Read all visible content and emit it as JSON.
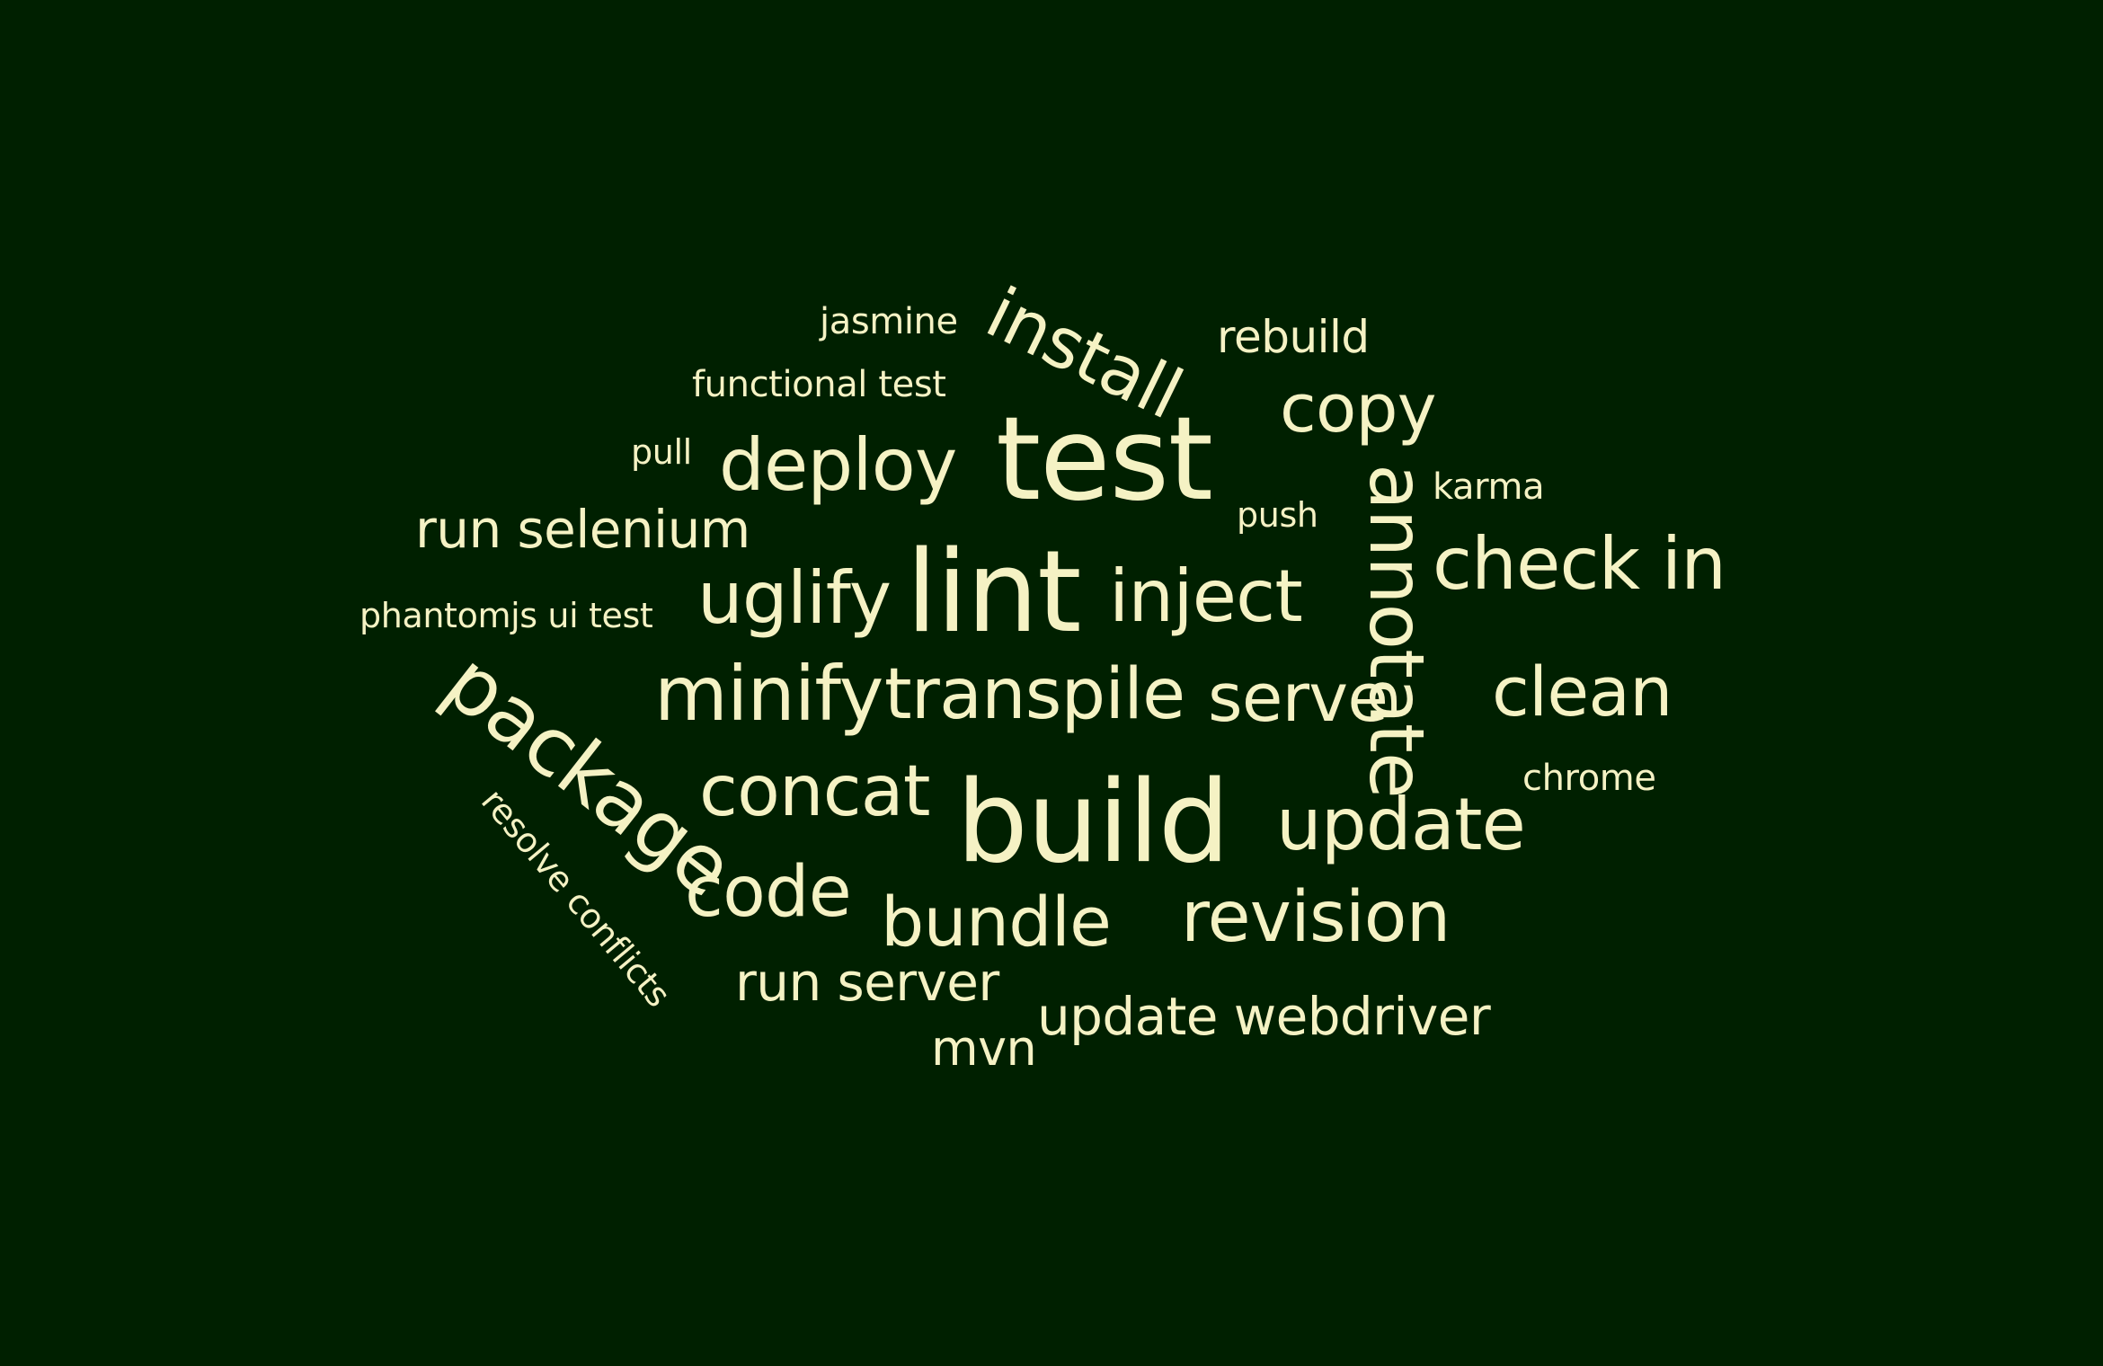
{
  "background_color": "#002000",
  "text_color": "#f5f2c4",
  "words": {
    "jasmine": "jasmine",
    "install": "install",
    "rebuild": "rebuild",
    "functional_test": "functional test",
    "copy": "copy",
    "pull": "pull",
    "deploy": "deploy",
    "test": "test",
    "push": "push",
    "annotate": "annotate",
    "karma": "karma",
    "run_selenium": "run selenium",
    "check_in": "check in",
    "phantomjs_ui_test": "phantomjs ui test",
    "uglify": "uglify",
    "lint": "lint",
    "inject": "inject",
    "package": "package",
    "minify": "minify",
    "transpile": "transpile",
    "serve": "serve",
    "clean": "clean",
    "chrome": "chrome",
    "concat": "concat",
    "build": "build",
    "update": "update",
    "resolve_conflicts": "resolve conflicts",
    "code": "code",
    "bundle": "bundle",
    "revision": "revision",
    "run_server": "run server",
    "update_webdriver": "update webdriver",
    "mvn": "mvn"
  }
}
